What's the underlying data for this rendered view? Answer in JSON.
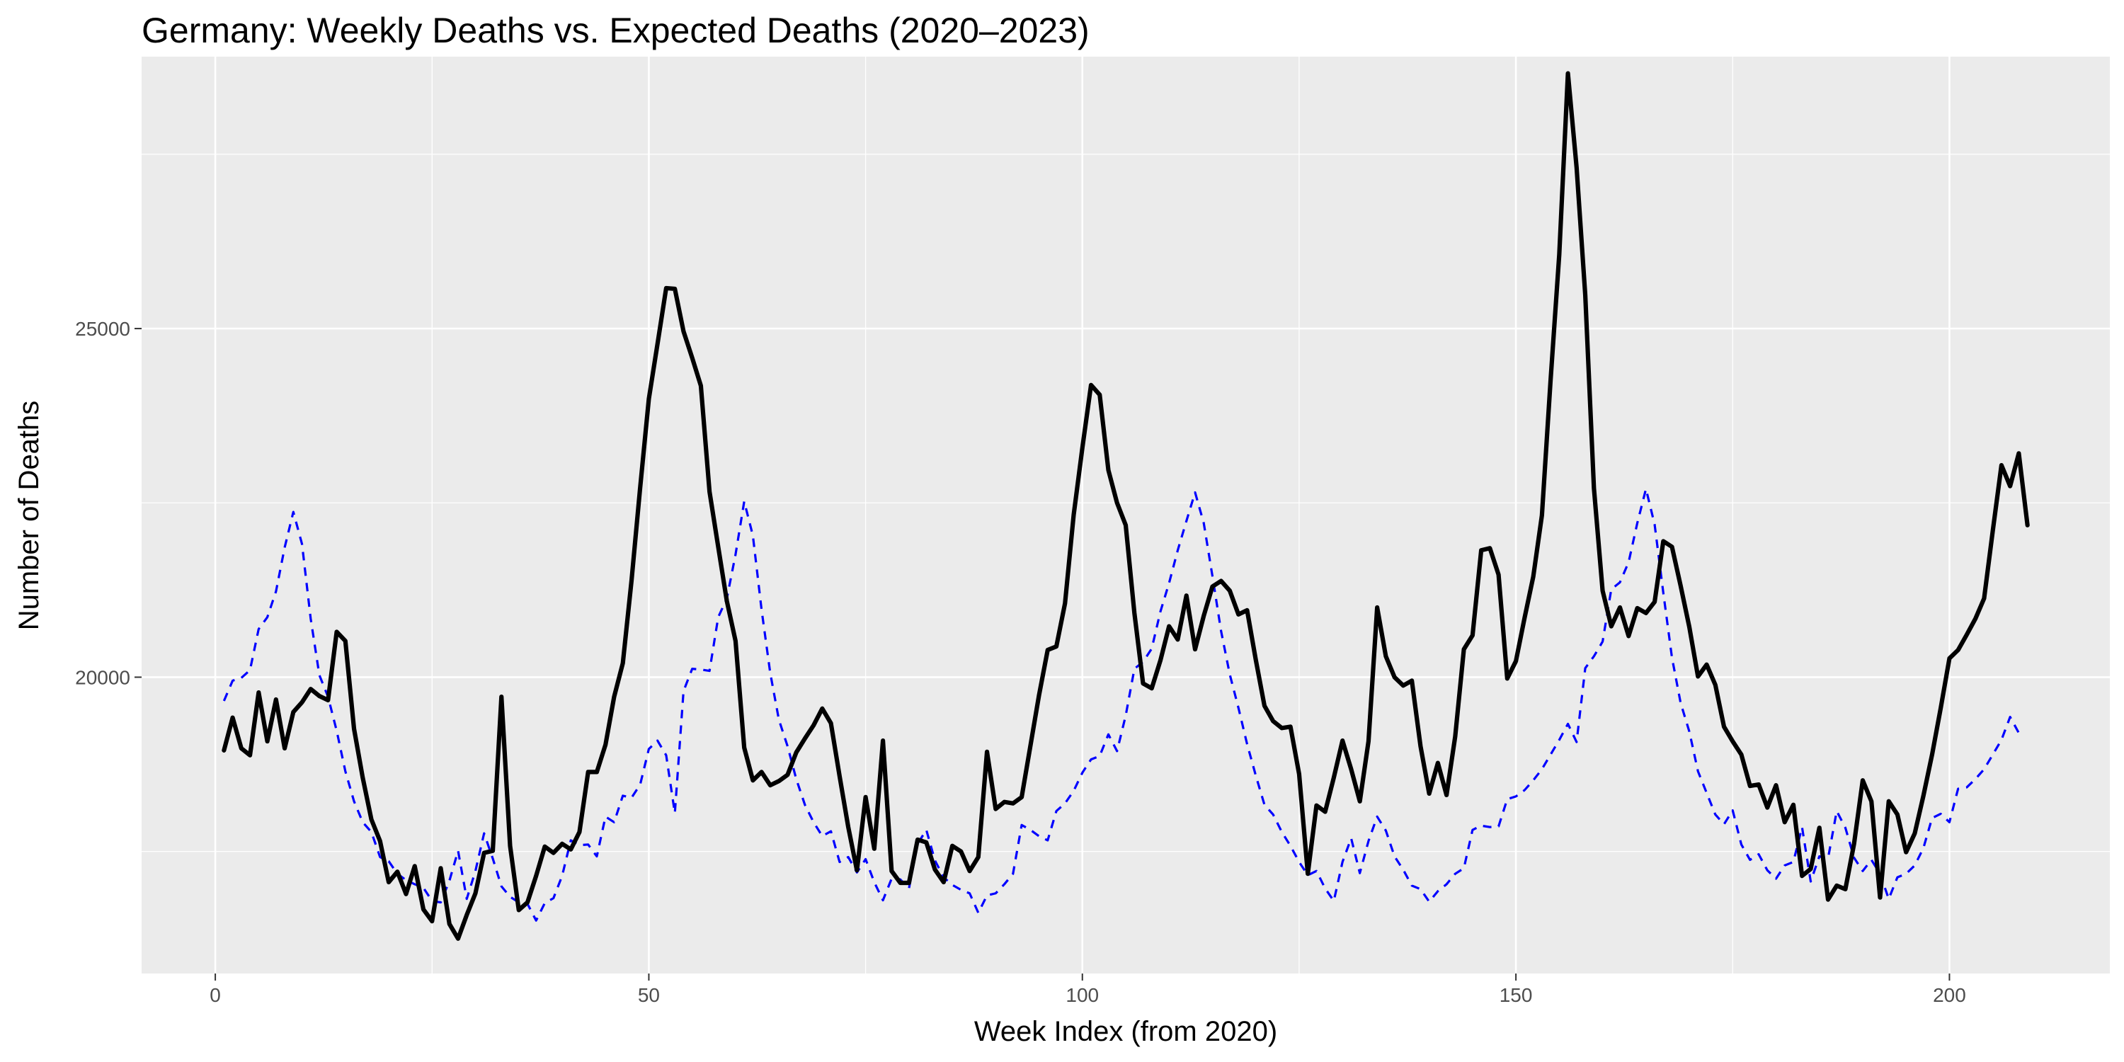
{
  "chart_data": {
    "type": "line",
    "title": "Germany: Weekly Deaths vs. Expected Deaths (2020–2023)",
    "xlabel": "Week Index (from 2020)",
    "ylabel": "Number of Deaths",
    "xlim": [
      -8.5,
      218.5
    ],
    "ylim": [
      15750,
      28900
    ],
    "x_ticks": [
      0,
      50,
      100,
      150,
      200
    ],
    "x_tick_labels": [
      "0",
      "50",
      "100",
      "150",
      "200"
    ],
    "y_ticks": [
      20000,
      25000
    ],
    "y_tick_labels": [
      "20000",
      "25000"
    ],
    "grid": true,
    "legend": "none",
    "series": [
      {
        "style": "solid",
        "color": "#000000",
        "x_start": 1,
        "values": [
          18950,
          19420,
          18980,
          18880,
          19780,
          19080,
          19680,
          18980,
          19500,
          19640,
          19830,
          19730,
          19670,
          20650,
          20520,
          19260,
          18560,
          17960,
          17650,
          17060,
          17210,
          16890,
          17290,
          16670,
          16500,
          17260,
          16460,
          16250,
          16590,
          16900,
          17480,
          17510,
          19720,
          17580,
          16660,
          16770,
          17150,
          17570,
          17480,
          17610,
          17530,
          17780,
          18640,
          18640,
          19030,
          19720,
          20200,
          21380,
          22720,
          23990,
          24780,
          25580,
          25570,
          24960,
          24580,
          24180,
          22660,
          21870,
          21090,
          20520,
          18990,
          18520,
          18640,
          18450,
          18510,
          18600,
          18920,
          19120,
          19310,
          19550,
          19340,
          18580,
          17850,
          17230,
          18280,
          17540,
          19090,
          17220,
          17050,
          17050,
          17670,
          17630,
          17240,
          17060,
          17580,
          17500,
          17220,
          17420,
          18930,
          18110,
          18210,
          18190,
          18280,
          19010,
          19740,
          20390,
          20440,
          21060,
          22330,
          23290,
          24190,
          24050,
          22970,
          22500,
          22180,
          20920,
          19910,
          19840,
          20240,
          20730,
          20540,
          21170,
          20400,
          20880,
          21300,
          21380,
          21240,
          20900,
          20960,
          20250,
          19590,
          19370,
          19270,
          19290,
          18610,
          17180,
          18160,
          18070,
          18560,
          19090,
          18680,
          18220,
          19080,
          21000,
          20300,
          20000,
          19880,
          19950,
          19010,
          18330,
          18770,
          18310,
          19150,
          20400,
          20600,
          21820,
          21850,
          21470,
          19980,
          20230,
          20850,
          21440,
          22320,
          24260,
          26060,
          28660,
          27310,
          25480,
          22710,
          21240,
          20730,
          21000,
          20590,
          20990,
          20920,
          21080,
          21950,
          21870,
          21310,
          20720,
          20010,
          20180,
          19890,
          19290,
          19080,
          18890,
          18440,
          18460,
          18130,
          18450,
          17920,
          18170,
          17150,
          17250,
          17840,
          16810,
          17010,
          16960,
          17610,
          18520,
          18220,
          16840,
          18220,
          18030,
          17490,
          17760,
          18300,
          18890,
          19560,
          20270,
          20390,
          20610,
          20840,
          21130,
          22100,
          23040,
          22740,
          23210,
          22180
        ]
      },
      {
        "style": "dashed",
        "color": "#0000ff",
        "x_start": 1,
        "values": [
          19660,
          19950,
          19990,
          20100,
          20690,
          20860,
          21230,
          21860,
          22370,
          21910,
          20840,
          20030,
          19720,
          19230,
          18650,
          18220,
          17920,
          17780,
          17420,
          17360,
          17180,
          17090,
          17030,
          16980,
          16790,
          16770,
          17080,
          17510,
          16820,
          17220,
          17760,
          17400,
          17000,
          16850,
          16770,
          16750,
          16510,
          16760,
          16830,
          17150,
          17660,
          17590,
          17600,
          17430,
          18000,
          17920,
          18300,
          18270,
          18460,
          18970,
          19090,
          18880,
          18050,
          19800,
          20120,
          20110,
          20090,
          20860,
          21130,
          21760,
          22520,
          22030,
          20970,
          20060,
          19390,
          19010,
          18540,
          18170,
          17920,
          17720,
          17790,
          17350,
          17420,
          17200,
          17390,
          17060,
          16800,
          17110,
          17100,
          16970,
          17610,
          17810,
          17370,
          17130,
          17020,
          16950,
          16900,
          16620,
          16870,
          16900,
          17030,
          17180,
          17880,
          17810,
          17720,
          17660,
          18080,
          18190,
          18370,
          18630,
          18820,
          18870,
          19180,
          18940,
          19450,
          20120,
          20220,
          20410,
          20940,
          21350,
          21820,
          22240,
          22650,
          22210,
          21450,
          20660,
          20040,
          19560,
          19040,
          18590,
          18170,
          18030,
          17780,
          17580,
          17350,
          17160,
          17220,
          16970,
          16790,
          17350,
          17690,
          17190,
          17650,
          18000,
          17800,
          17430,
          17240,
          17010,
          16960,
          16780,
          16930,
          17030,
          17180,
          17260,
          17810,
          17870,
          17850,
          17860,
          18250,
          18290,
          18380,
          18520,
          18680,
          18890,
          19100,
          19330,
          19070,
          20130,
          20300,
          20510,
          21260,
          21360,
          21650,
          22210,
          22700,
          22190,
          21210,
          20280,
          19630,
          19220,
          18650,
          18340,
          18030,
          17890,
          18090,
          17600,
          17380,
          17460,
          17230,
          17110,
          17300,
          17350,
          17850,
          17070,
          17430,
          17400,
          18080,
          17840,
          17410,
          17220,
          17380,
          17180,
          16820,
          17130,
          17180,
          17300,
          17550,
          17980,
          18040,
          17920,
          18400,
          18420,
          18540,
          18680,
          18890,
          19100,
          19430,
          19200
        ]
      }
    ]
  }
}
